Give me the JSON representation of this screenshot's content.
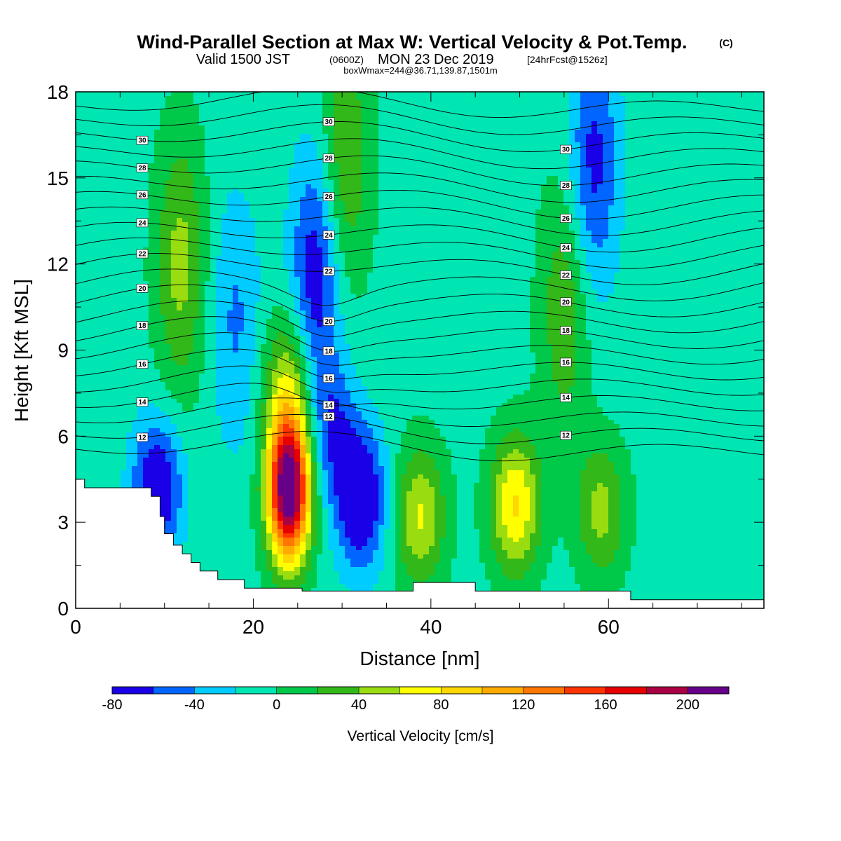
{
  "title": {
    "main": "Wind-Parallel Section at Max W: Vertical Velocity & Pot.Temp.",
    "copyright": "(C)",
    "valid_prefix": "Valid 1500 JST",
    "valid_utc": "(0600Z)",
    "valid_date": "MON 23 Dec 2019",
    "forecast": "[24hrFcst@1526z]",
    "box_info": "boxWmax=244@36.71,139.87,1501m"
  },
  "chart_data": {
    "type": "heatmap",
    "xlabel": "Distance [nm]",
    "ylabel": "Height [Kft MSL]",
    "xlim": [
      0,
      77.5
    ],
    "ylim": [
      0,
      18
    ],
    "x_ticks": [
      "0",
      "20",
      "40",
      "60"
    ],
    "y_ticks": [
      "0",
      "3",
      "6",
      "9",
      "12",
      "15",
      "18"
    ],
    "colorbar": {
      "title": "Vertical Velocity [cm/s]",
      "levels": [
        -80,
        -60,
        -40,
        -20,
        0,
        20,
        40,
        60,
        80,
        100,
        120,
        140,
        160,
        180,
        200,
        220
      ],
      "tick_labels": [
        "-80",
        "-40",
        "0",
        "40",
        "80",
        "120",
        "160",
        "200"
      ],
      "colors": [
        "#1a00e6",
        "#0066ff",
        "#00ccff",
        "#00e6b3",
        "#00c94a",
        "#33b81a",
        "#99dd11",
        "#ffff00",
        "#ffd700",
        "#ffaa00",
        "#ff7700",
        "#ff3300",
        "#e60000",
        "#aa0044",
        "#660088"
      ]
    },
    "theta_contours": {
      "units": "°C",
      "label_values": [
        "30",
        "28",
        "26",
        "24",
        "22",
        "20",
        "18",
        "16",
        "14",
        "12"
      ],
      "levels": [
        11,
        12,
        13,
        14,
        15,
        16,
        17,
        18,
        19,
        20,
        21,
        22,
        23,
        24,
        25,
        26,
        27,
        28,
        29,
        30,
        31,
        32
      ]
    },
    "w_centers": [
      {
        "x": 24.0,
        "y": 4.2,
        "w": 244
      },
      {
        "x": 24.0,
        "y": 8.0,
        "w": 60
      },
      {
        "x": 11.8,
        "y": 12.0,
        "w": 55
      },
      {
        "x": 30.3,
        "y": 15.5,
        "w": 50
      },
      {
        "x": 38.8,
        "y": 3.2,
        "w": 70
      },
      {
        "x": 49.5,
        "y": 3.6,
        "w": 90
      },
      {
        "x": 59.2,
        "y": 3.4,
        "w": 55
      },
      {
        "x": 55.1,
        "y": 10.5,
        "w": 45
      },
      {
        "x": 32.1,
        "y": 3.8,
        "w": -85
      },
      {
        "x": 27.1,
        "y": 11.5,
        "w": -70
      },
      {
        "x": 9.2,
        "y": 4.2,
        "w": -80
      },
      {
        "x": 58.3,
        "y": 15.5,
        "w": -60
      },
      {
        "x": 29.0,
        "y": 6.2,
        "w": -45
      },
      {
        "x": 18.0,
        "y": 10.0,
        "w": -35
      }
    ],
    "terrain_profile": {
      "x": [
        0,
        1,
        1,
        8.5,
        8.5,
        9.5,
        9.5,
        10,
        10,
        11,
        11,
        12,
        12,
        13,
        13,
        14,
        14,
        16,
        16,
        19,
        19,
        25.5,
        25.5,
        29,
        29,
        32,
        32,
        35,
        35,
        38,
        38,
        40,
        40,
        45,
        45,
        62.5,
        62.5,
        77.5
      ],
      "y": [
        4.5,
        4.5,
        4.2,
        4.2,
        3.9,
        3.9,
        3.2,
        3.2,
        2.6,
        2.6,
        2.2,
        2.2,
        1.9,
        1.9,
        1.6,
        1.6,
        1.3,
        1.3,
        1.0,
        1.0,
        0.7,
        0.7,
        0.6,
        0.6,
        0.6,
        0.6,
        0.6,
        0.6,
        0.6,
        0.6,
        0.9,
        0.9,
        0.9,
        0.9,
        0.6,
        0.6,
        0.3,
        0.3
      ]
    }
  }
}
